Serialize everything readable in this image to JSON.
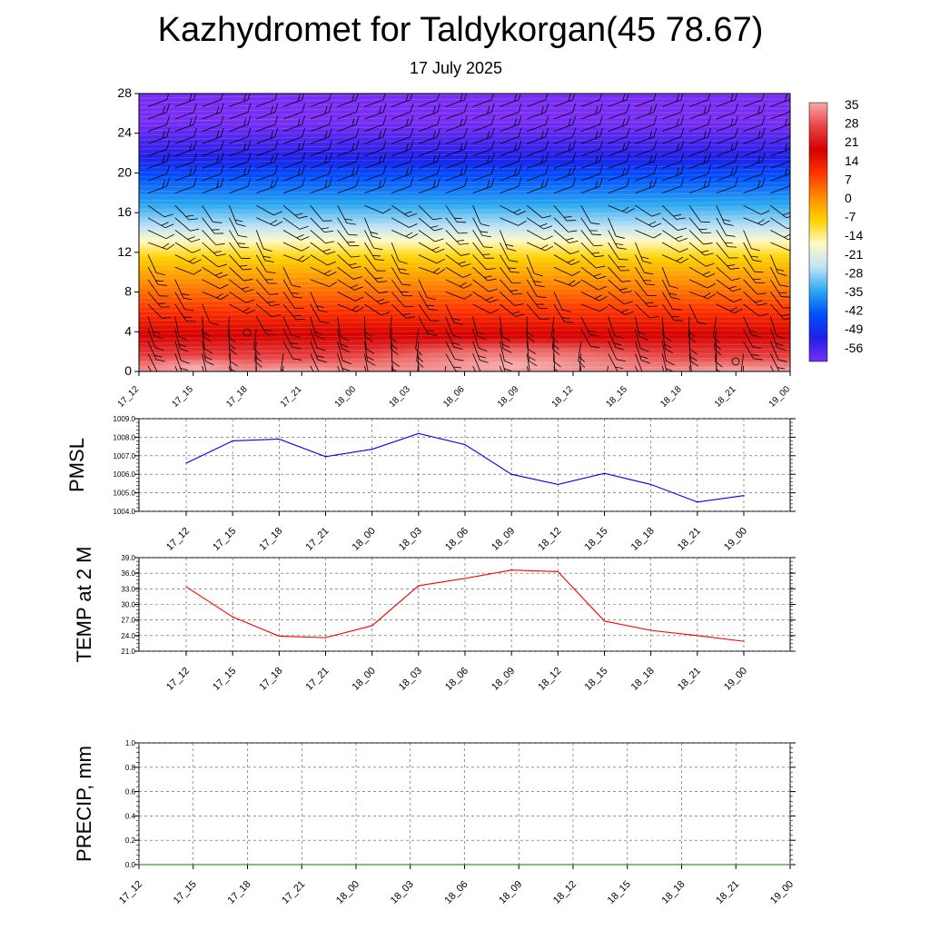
{
  "header": {
    "title": "Kazhydromet for Taldykorgan(45 78.67)",
    "subtitle": "17 July 2025"
  },
  "chart_data": [
    {
      "type": "heatmap",
      "title": "Kazhydromet for Taldykorgan(45 78.67)",
      "x_ticks": [
        "17_12",
        "17_15",
        "17_18",
        "17_21",
        "18_00",
        "18_03",
        "18_06",
        "18_09",
        "18_12",
        "18_15",
        "18_18",
        "18_21",
        "19_00"
      ],
      "y_ticks": [
        "0",
        "4",
        "8",
        "12",
        "16",
        "20",
        "24",
        "28"
      ],
      "ylim": [
        0,
        28
      ],
      "colorbar_labels": [
        "35",
        "28",
        "21",
        "14",
        "7",
        "0",
        "-7",
        "-14",
        "-21",
        "-28",
        "-35",
        "-42",
        "-49",
        "-56"
      ],
      "colors": [
        "#f5a8a8",
        "#e84545",
        "#d50000",
        "#ff3300",
        "#ff8c00",
        "#ffd200",
        "#fff9c4",
        "#bfe3f5",
        "#2aa8f0",
        "#0050ff",
        "#2020e8",
        "#7a2df5"
      ]
    },
    {
      "type": "line",
      "ylabel": "PMSL",
      "ylim": [
        1004.0,
        1009.0
      ],
      "y_ticks": [
        "1004.0",
        "1005.0",
        "1006.0",
        "1007.0",
        "1008.0",
        "1009.0"
      ],
      "x_ticks": [
        "17_12",
        "17_15",
        "17_18",
        "17_21",
        "18_00",
        "18_03",
        "18_06",
        "18_09",
        "18_12",
        "18_15",
        "18_18",
        "18_21",
        "19_00"
      ],
      "values": [
        1006.6,
        1007.8,
        1007.9,
        1006.95,
        1007.35,
        1008.2,
        1007.6,
        1006.0,
        1005.45,
        1006.05,
        1005.45,
        1004.5,
        1004.85
      ],
      "color": "#0000ff"
    },
    {
      "type": "line",
      "ylabel": "TEMP at 2 M",
      "ylim": [
        21.0,
        39.0
      ],
      "y_ticks": [
        "21.0",
        "24.0",
        "27.0",
        "30.0",
        "33.0",
        "36.0",
        "39.0"
      ],
      "x_ticks": [
        "17_12",
        "17_15",
        "17_18",
        "17_21",
        "18_00",
        "18_03",
        "18_06",
        "18_09",
        "18_12",
        "18_15",
        "18_18",
        "18_21",
        "19_00"
      ],
      "values": [
        33.4,
        27.6,
        23.9,
        23.6,
        25.9,
        33.6,
        35.0,
        36.6,
        36.3,
        26.8,
        25.0,
        24.0,
        22.9
      ],
      "color": "#ff0000"
    },
    {
      "type": "line",
      "ylabel": "PRECIP, mm",
      "ylim": [
        0.0,
        1.0
      ],
      "y_ticks": [
        "0.0",
        "0.2",
        "0.4",
        "0.6",
        "0.8",
        "1.0"
      ],
      "x_ticks": [
        "17_12",
        "17_15",
        "17_18",
        "17_21",
        "18_00",
        "18_03",
        "18_06",
        "18_09",
        "18_12",
        "18_15",
        "18_18",
        "18_21",
        "19_00"
      ],
      "values": [
        0,
        0,
        0,
        0,
        0,
        0,
        0,
        0,
        0,
        0,
        0,
        0,
        0
      ],
      "color": "#008000"
    }
  ]
}
